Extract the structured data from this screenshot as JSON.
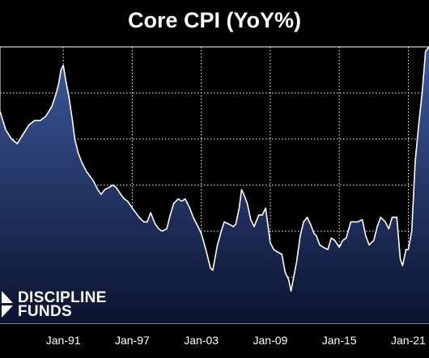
{
  "chart_data": {
    "type": "area",
    "title": "Core CPI (YoY%)",
    "xlabel": "",
    "ylabel": "",
    "x_tick_labels": [
      "Jan-91",
      "Jan-97",
      "Jan-03",
      "Jan-09",
      "Jan-15",
      "Jan-21"
    ],
    "x_tick_years": [
      1991,
      1997,
      2003,
      2009,
      2015,
      2021
    ],
    "xlim": [
      1985.5,
      2022.8
    ],
    "ylim": [
      0,
      6
    ],
    "grid": true,
    "legend": "none",
    "colors": {
      "fill_top": "#3f5a9e",
      "fill_bottom": "#0b1330",
      "line": "#ffffff",
      "grid": "#ffffff",
      "background": "#000000"
    },
    "series": [
      {
        "x": [
          1985.5,
          1986.0,
          1986.5,
          1987.0,
          1987.5,
          1988.0,
          1988.5,
          1989.0,
          1989.5,
          1990.0,
          1990.4,
          1990.6,
          1990.8,
          1991.0,
          1991.2,
          1991.5,
          1991.8,
          1992.0,
          1992.3,
          1992.6,
          1993.0,
          1993.3,
          1993.6,
          1994.0,
          1994.3,
          1994.6,
          1995.0,
          1995.3,
          1995.6,
          1996.0,
          1996.3,
          1996.6,
          1997.0,
          1997.3,
          1997.6,
          1998.0,
          1998.3,
          1998.6,
          1999.0,
          1999.3,
          1999.6,
          2000.0,
          2000.3,
          2000.6,
          2001.0,
          2001.3,
          2001.6,
          2002.0,
          2002.3,
          2002.6,
          2003.0,
          2003.4,
          2003.8,
          2004.0,
          2004.4,
          2004.8,
          2005.0,
          2005.4,
          2005.8,
          2006.0,
          2006.3,
          2006.5,
          2006.7,
          2007.0,
          2007.3,
          2007.6,
          2008.0,
          2008.3,
          2008.6,
          2009.0,
          2009.3,
          2009.6,
          2010.0,
          2010.3,
          2010.6,
          2010.8,
          2011.0,
          2011.3,
          2011.6,
          2011.9,
          2012.2,
          2012.5,
          2012.8,
          2013.0,
          2013.3,
          2013.6,
          2014.0,
          2014.3,
          2014.6,
          2015.0,
          2015.3,
          2015.6,
          2016.0,
          2016.3,
          2016.6,
          2017.0,
          2017.3,
          2017.6,
          2018.0,
          2018.3,
          2018.6,
          2019.0,
          2019.3,
          2019.6,
          2020.0,
          2020.3,
          2020.5,
          2020.8,
          2021.0,
          2021.3,
          2021.6,
          2021.9,
          2022.2,
          2022.5,
          2022.8
        ],
        "values": [
          4.6,
          4.2,
          4.0,
          3.9,
          4.1,
          4.3,
          4.4,
          4.4,
          4.5,
          4.7,
          5.0,
          5.2,
          5.5,
          5.6,
          5.3,
          4.9,
          4.4,
          4.0,
          3.7,
          3.5,
          3.3,
          3.2,
          3.1,
          2.9,
          2.8,
          2.9,
          2.95,
          3.0,
          2.95,
          2.8,
          2.7,
          2.65,
          2.5,
          2.4,
          2.3,
          2.2,
          2.2,
          2.4,
          2.15,
          2.05,
          2.0,
          2.05,
          2.35,
          2.6,
          2.7,
          2.65,
          2.7,
          2.5,
          2.3,
          2.15,
          1.95,
          1.6,
          1.2,
          1.15,
          1.7,
          2.05,
          2.2,
          2.15,
          2.1,
          2.15,
          2.5,
          2.9,
          2.8,
          2.6,
          2.25,
          2.1,
          2.35,
          2.35,
          2.5,
          1.75,
          1.6,
          1.55,
          1.5,
          1.1,
          0.95,
          0.7,
          0.95,
          1.35,
          1.9,
          2.2,
          2.3,
          2.15,
          1.95,
          1.9,
          1.7,
          1.65,
          1.6,
          1.85,
          1.8,
          1.65,
          1.8,
          1.85,
          2.2,
          2.2,
          2.2,
          2.25,
          1.9,
          1.7,
          1.8,
          2.1,
          2.3,
          2.2,
          2.05,
          2.3,
          2.3,
          1.4,
          1.25,
          1.6,
          1.6,
          2.0,
          3.5,
          4.3,
          5.0,
          5.9,
          6.0
        ]
      }
    ]
  },
  "logo": {
    "line1": "DISCIPLINE",
    "line2": "FUNDS"
  }
}
